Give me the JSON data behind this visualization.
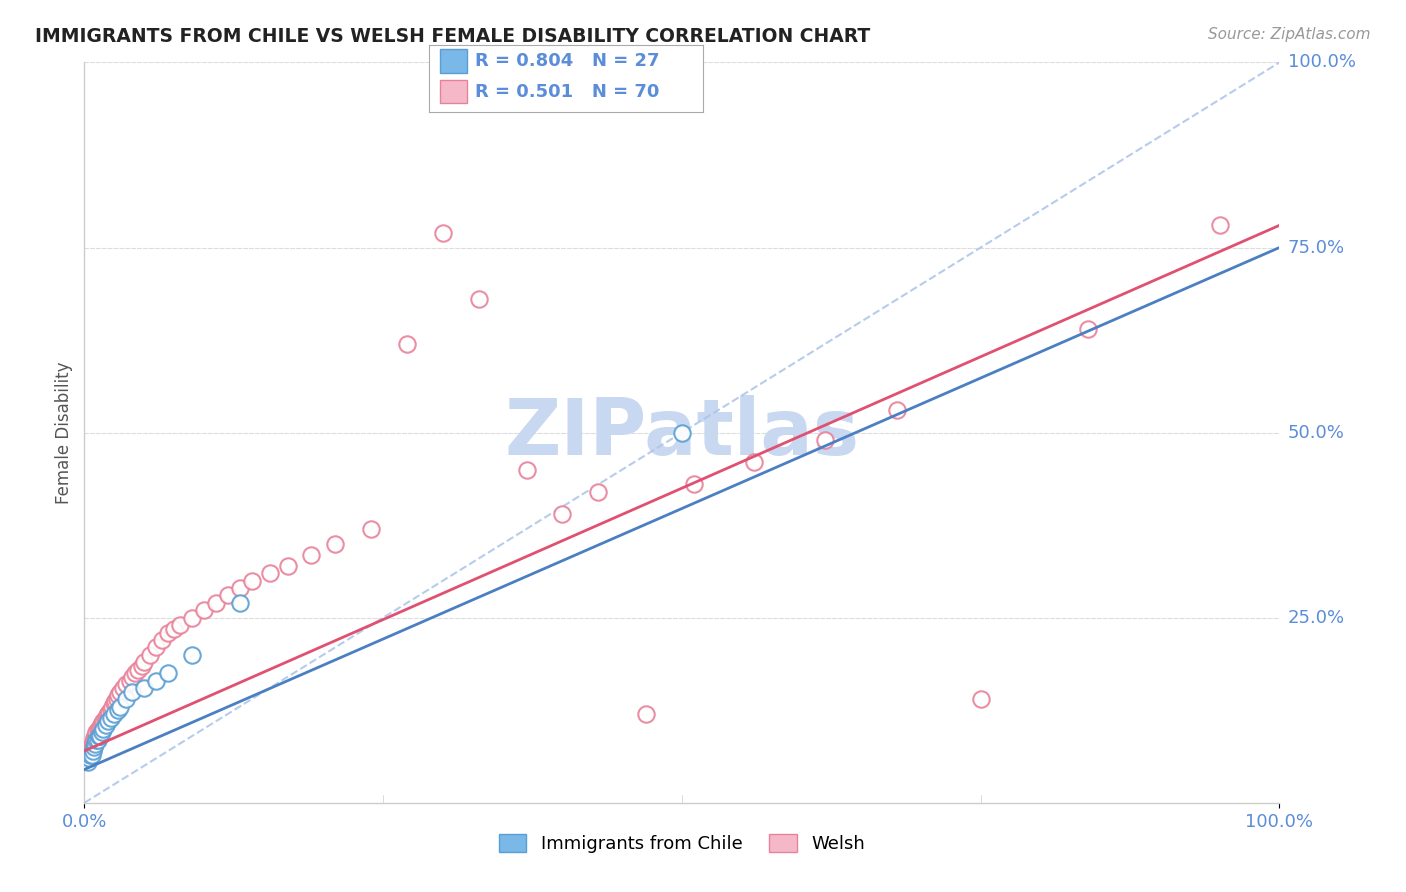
{
  "title": "IMMIGRANTS FROM CHILE VS WELSH FEMALE DISABILITY CORRELATION CHART",
  "source": "Source: ZipAtlas.com",
  "ylabel": "Female Disability",
  "xlim": [
    0,
    1
  ],
  "ylim": [
    0,
    1
  ],
  "series1_name": "Immigrants from Chile",
  "series1_color": "#7ab8e8",
  "series1_edge_color": "#5a9fd4",
  "series1_R": 0.804,
  "series1_N": 27,
  "series2_name": "Welsh",
  "series2_color": "#f5b8c8",
  "series2_edge_color": "#e8829a",
  "series2_R": 0.501,
  "series2_N": 70,
  "trend_color1": "#4a7fc1",
  "trend_color2": "#e05070",
  "diagonal_color": "#aac4e8",
  "watermark_color": "#c8d8f0",
  "background_color": "#ffffff",
  "grid_color": "#dddddd",
  "tick_label_color": "#5b8dd9",
  "title_color": "#222222",
  "legend_text_color": "#5b8dd9",
  "legend_border_color": "#aaaaaa"
}
